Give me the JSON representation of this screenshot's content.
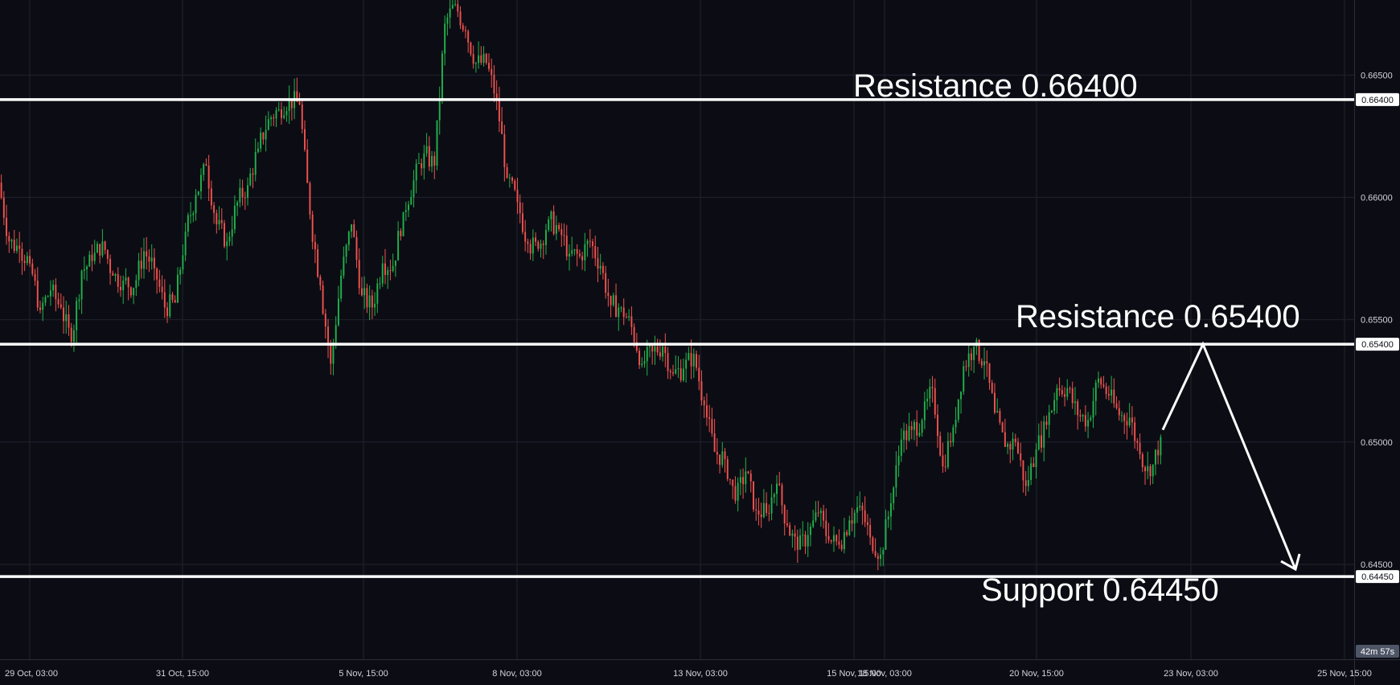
{
  "chart_data": {
    "type": "candlestick",
    "x_ticks": [
      "29 Oct, 03:00",
      "31 Oct, 15:00",
      "5 Nov, 15:00",
      "8 Nov, 03:00",
      "13 Nov, 03:00",
      "15 Nov, 15:00",
      "18 Nov, 03:00",
      "20 Nov, 15:00",
      "23 Nov, 03:00",
      "25 Nov, 15:00"
    ],
    "y_ticks": [
      0.645,
      0.65,
      0.655,
      0.66,
      0.665
    ],
    "y_tick_labels": [
      "0.64500",
      "0.65000",
      "0.65500",
      "0.66000",
      "0.66500"
    ],
    "ylim": [
      0.64112,
      0.66807
    ],
    "levels": [
      {
        "value": 0.664,
        "tag": "0.66400",
        "annotation": "Resistance 0.66400"
      },
      {
        "value": 0.654,
        "tag": "0.65400",
        "annotation": "Resistance 0.65400"
      },
      {
        "value": 0.6445,
        "tag": "0.64450",
        "annotation": "Support 0.64450"
      }
    ],
    "projection": {
      "path": [
        0.6505,
        0.654,
        0.6448
      ],
      "description": "arrow up to resistance then down to support"
    },
    "close_series": [
      0.6606,
      0.6582,
      0.6579,
      0.6573,
      0.6554,
      0.6562,
      0.6555,
      0.6541,
      0.657,
      0.6574,
      0.6582,
      0.6568,
      0.6566,
      0.6563,
      0.6578,
      0.6571,
      0.6555,
      0.6557,
      0.6586,
      0.6601,
      0.6613,
      0.6589,
      0.6582,
      0.6598,
      0.6605,
      0.662,
      0.6632,
      0.6636,
      0.664,
      0.6638,
      0.6593,
      0.6564,
      0.6532,
      0.6568,
      0.6589,
      0.656,
      0.6555,
      0.6573,
      0.6572,
      0.6594,
      0.6607,
      0.6618,
      0.6613,
      0.6671,
      0.6679,
      0.6668,
      0.6655,
      0.6655,
      0.664,
      0.6608,
      0.6598,
      0.6581,
      0.6579,
      0.6591,
      0.6587,
      0.6577,
      0.6576,
      0.6582,
      0.6572,
      0.6556,
      0.6555,
      0.6547,
      0.6532,
      0.6537,
      0.6539,
      0.6528,
      0.653,
      0.6536,
      0.6515,
      0.6496,
      0.6493,
      0.6476,
      0.6488,
      0.6472,
      0.6471,
      0.6483,
      0.6466,
      0.6456,
      0.6462,
      0.6471,
      0.646,
      0.6458,
      0.6468,
      0.6474,
      0.6461,
      0.6454,
      0.6475,
      0.6501,
      0.6505,
      0.6509,
      0.6522,
      0.649,
      0.6506,
      0.6531,
      0.6539,
      0.6533,
      0.6512,
      0.6498,
      0.65,
      0.6482,
      0.6497,
      0.6507,
      0.6522,
      0.6522,
      0.6511,
      0.6509,
      0.6526,
      0.6519,
      0.6511,
      0.651,
      0.6495,
      0.6486,
      0.6502
    ],
    "timer": "42m 57s"
  }
}
